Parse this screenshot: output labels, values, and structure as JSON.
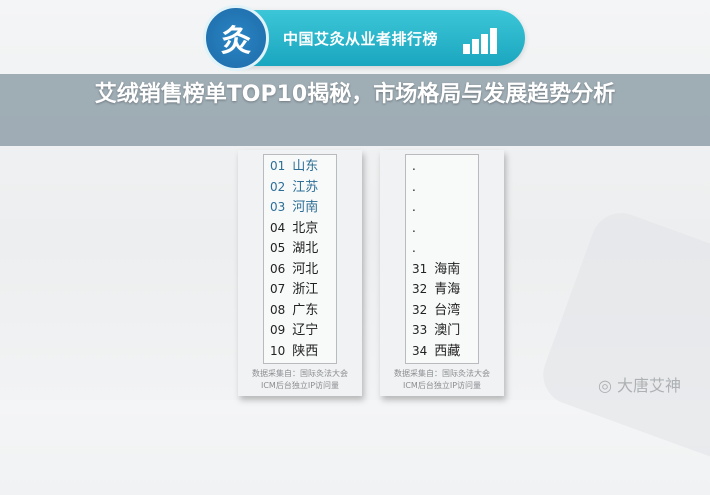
{
  "banner": {
    "logo_char": "灸",
    "title": "中国艾灸从业者排行榜",
    "icon": "bar-chart-up-icon"
  },
  "left_card": {
    "rows": [
      {
        "rank": "01",
        "name": "山东"
      },
      {
        "rank": "02",
        "name": "江苏"
      },
      {
        "rank": "03",
        "name": "河南"
      },
      {
        "rank": "04",
        "name": "北京"
      },
      {
        "rank": "05",
        "name": "湖北"
      },
      {
        "rank": "06",
        "name": "河北"
      },
      {
        "rank": "07",
        "name": "浙江"
      },
      {
        "rank": "08",
        "name": "广东"
      },
      {
        "rank": "09",
        "name": "辽宁"
      },
      {
        "rank": "10",
        "name": "陕西"
      }
    ],
    "source_line1": "数据采集自：国际灸法大会",
    "source_line2": "ICM后台独立IP访问量"
  },
  "right_card": {
    "rows": [
      {
        "rank": ".",
        "name": ""
      },
      {
        "rank": ".",
        "name": ""
      },
      {
        "rank": ".",
        "name": ""
      },
      {
        "rank": ".",
        "name": ""
      },
      {
        "rank": ".",
        "name": ""
      },
      {
        "rank": "31",
        "name": "海南"
      },
      {
        "rank": "32",
        "name": "青海"
      },
      {
        "rank": "32",
        "name": "台湾"
      },
      {
        "rank": "33",
        "name": "澳门"
      },
      {
        "rank": "34",
        "name": "西藏"
      }
    ],
    "source_line1": "数据采集自：国际灸法大会",
    "source_line2": "ICM后台独立IP访问量"
  },
  "overlay_title": "艾绒销售榜单TOP10揭秘，市场格局与发展趋势分析",
  "watermark": "大唐艾神"
}
